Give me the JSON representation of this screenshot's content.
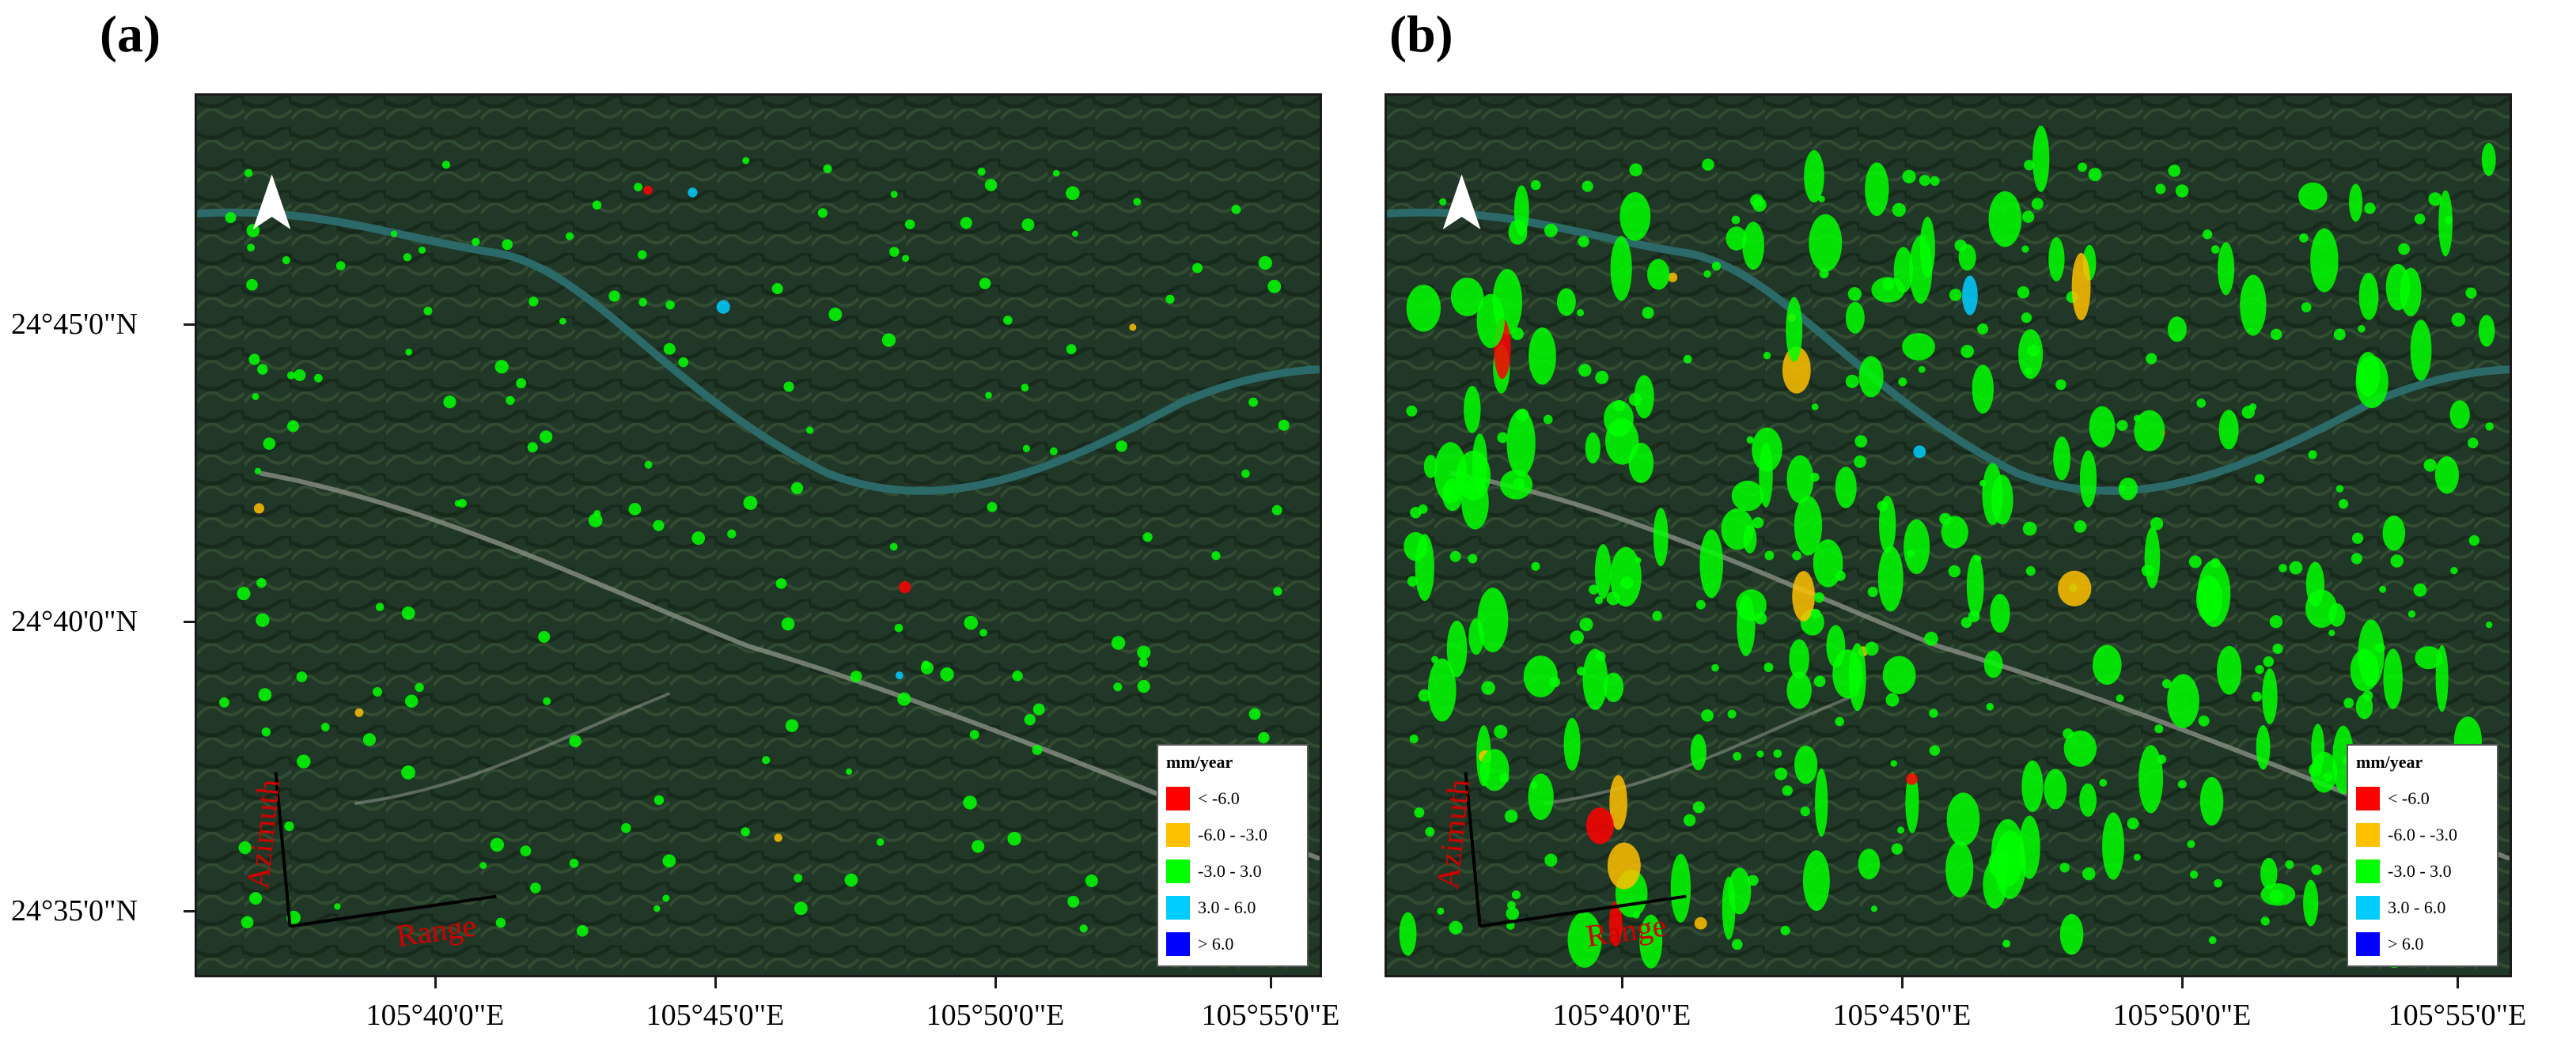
{
  "panels": [
    {
      "label": "(a)"
    },
    {
      "label": "(b)"
    }
  ],
  "y_ticks": [
    "24°45'0\"N",
    "24°40'0\"N",
    "24°35'0\"N"
  ],
  "x_ticks": [
    "105°40'0\"E",
    "105°45'0\"E",
    "105°50'0\"E",
    "105°55'0\"E"
  ],
  "map_labels": {
    "azimuth": "Azimuth",
    "range": "Range"
  },
  "legend": {
    "title": "mm/year",
    "items": [
      {
        "label": "< -6.0",
        "color": "#ff0000"
      },
      {
        "label": "-6.0 - -3.0",
        "color": "#ffc000"
      },
      {
        "label": "-3.0 - 3.0",
        "color": "#00ff00"
      },
      {
        "label": "3.0 - 6.0",
        "color": "#00ccff"
      },
      {
        "label": "> 6.0",
        "color": "#0000ff"
      }
    ]
  },
  "colors": {
    "terrain_dark": "#1d3321",
    "terrain_mid": "#2f4a2f",
    "river": "#2c6a6a",
    "valley": "#8a8f86",
    "deformation_stable": "#5cff5c",
    "annotation_red": "#d00000"
  },
  "north_arrow_icon": "north-arrow-icon"
}
